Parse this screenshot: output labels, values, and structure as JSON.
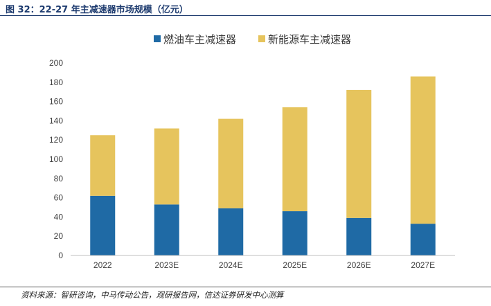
{
  "header": {
    "title": "图 32：22-27 年主减速器市场规模（亿元）"
  },
  "footer": {
    "source": "资料来源：智研咨询，中马传动公告，观研报告网，信达证券研发中心测算"
  },
  "colors": {
    "fuel": "#1f6aa5",
    "nev": "#e6c45d",
    "axis": "#bfbfbf",
    "tick_text": "#404040",
    "title": "#1c3a6e"
  },
  "chart_data": {
    "type": "bar",
    "stacked": true,
    "categories": [
      "2022",
      "2023E",
      "2024E",
      "2025E",
      "2026E",
      "2027E"
    ],
    "series": [
      {
        "name": "燃油车主减速器",
        "values": [
          62,
          53,
          49,
          46,
          39,
          33
        ]
      },
      {
        "name": "新能源车主减速器",
        "values": [
          63,
          79,
          93,
          108,
          133,
          153
        ]
      }
    ],
    "yticks": [
      "0",
      "20",
      "40",
      "60",
      "80",
      "100",
      "120",
      "140",
      "160",
      "180",
      "200"
    ],
    "ylim": [
      0,
      200
    ],
    "legend_position": "top",
    "grid": false,
    "title": "",
    "xlabel": "",
    "ylabel": ""
  }
}
